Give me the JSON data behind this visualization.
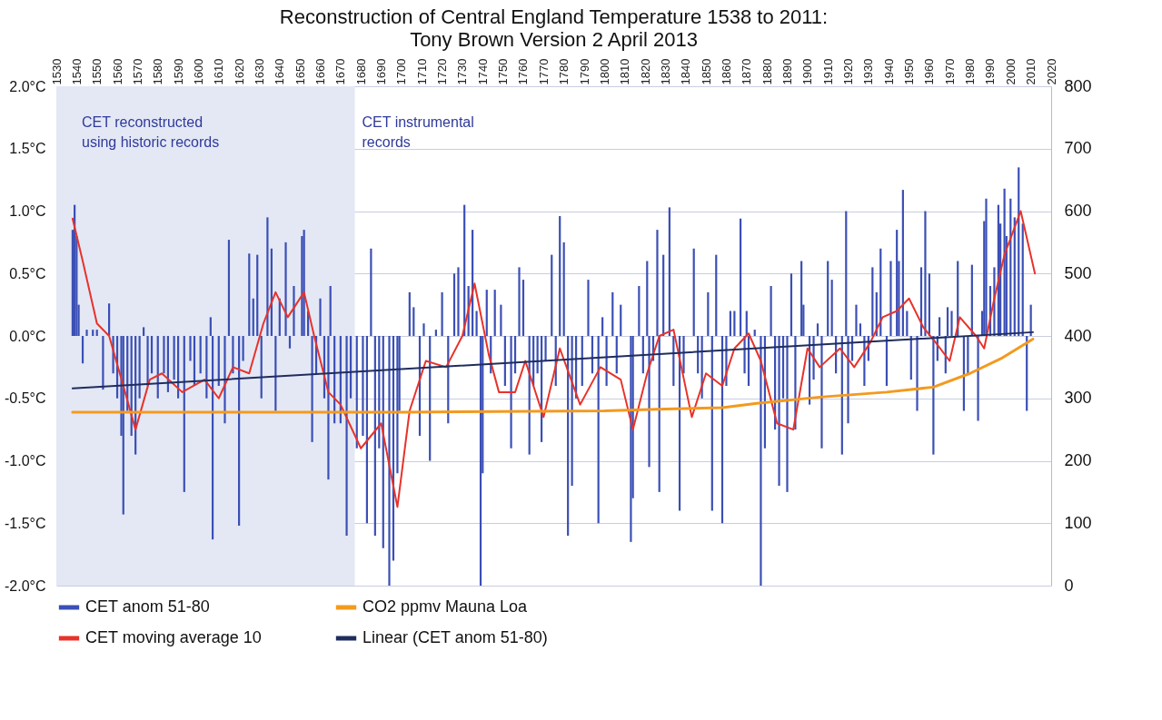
{
  "chart_data": {
    "type": "bar",
    "title": "Reconstruction of Central England Temperature 1538 to 2011:",
    "subtitle": "Tony Brown     Version 2 April 2013",
    "xlim": [
      1530,
      2020
    ],
    "xticks": [
      1530,
      1540,
      1550,
      1560,
      1570,
      1580,
      1590,
      1600,
      1610,
      1620,
      1630,
      1640,
      1650,
      1660,
      1670,
      1680,
      1690,
      1700,
      1710,
      1720,
      1730,
      1740,
      1750,
      1760,
      1770,
      1780,
      1790,
      1800,
      1810,
      1820,
      1830,
      1840,
      1850,
      1860,
      1870,
      1880,
      1890,
      1900,
      1910,
      1920,
      1930,
      1940,
      1950,
      1960,
      1970,
      1980,
      1990,
      2000,
      2010,
      2020
    ],
    "ylim": [
      -2,
      2
    ],
    "yticks": [
      {
        "value": -2,
        "label": "-2.0°C"
      },
      {
        "value": -1.5,
        "label": "-1.5°C"
      },
      {
        "value": -1,
        "label": "-1.0°C"
      },
      {
        "value": -0.5,
        "label": "-0.5°C"
      },
      {
        "value": 0,
        "label": "0.0°C"
      },
      {
        "value": 0.5,
        "label": "0.5°C"
      },
      {
        "value": 1,
        "label": "1.0°C"
      },
      {
        "value": 1.5,
        "label": "1.5°C"
      },
      {
        "value": 2,
        "label": "2.0°C"
      }
    ],
    "y2lim": [
      0,
      800
    ],
    "y2ticks": [
      0,
      100,
      200,
      300,
      400,
      500,
      600,
      700,
      800
    ],
    "grid": "y",
    "legend": "bottom",
    "bands": [
      {
        "axis": "x",
        "from": 1530,
        "to": 1677,
        "label": "CET reconstructed using historic records",
        "color": "#e4e8f5"
      }
    ],
    "annotations": [
      "CET instrumental records"
    ],
    "series": [
      {
        "name": "CET anom 51-80",
        "color": "#3b4fb5",
        "x": [
          1538,
          1539,
          1540,
          1541,
          1543,
          1545,
          1548,
          1550,
          1553,
          1556,
          1558,
          1560,
          1562,
          1563,
          1565,
          1567,
          1569,
          1571,
          1573,
          1575,
          1577,
          1580,
          1583,
          1585,
          1588,
          1590,
          1593,
          1596,
          1598,
          1601,
          1604,
          1606,
          1607,
          1610,
          1613,
          1615,
          1617,
          1620,
          1622,
          1625,
          1627,
          1629,
          1631,
          1634,
          1636,
          1638,
          1640,
          1643,
          1645,
          1647,
          1651,
          1652,
          1654,
          1656,
          1658,
          1660,
          1662,
          1664,
          1665,
          1667,
          1670,
          1673,
          1675,
          1678,
          1681,
          1683,
          1685,
          1687,
          1689,
          1691,
          1694,
          1696,
          1698,
          1699,
          1704,
          1706,
          1709,
          1711,
          1714,
          1717,
          1720,
          1723,
          1726,
          1728,
          1731,
          1733,
          1735,
          1737,
          1739,
          1740,
          1742,
          1744,
          1746,
          1749,
          1751,
          1754,
          1756,
          1758,
          1760,
          1763,
          1765,
          1767,
          1769,
          1771,
          1774,
          1776,
          1778,
          1780,
          1782,
          1784,
          1786,
          1789,
          1792,
          1794,
          1797,
          1799,
          1801,
          1804,
          1806,
          1808,
          1810,
          1813,
          1814,
          1817,
          1819,
          1821,
          1822,
          1824,
          1826,
          1827,
          1829,
          1832,
          1834,
          1837,
          1839,
          1841,
          1844,
          1846,
          1848,
          1851,
          1853,
          1855,
          1858,
          1860,
          1862,
          1864,
          1867,
          1869,
          1870,
          1871,
          1874,
          1877,
          1879,
          1882,
          1884,
          1886,
          1888,
          1890,
          1892,
          1894,
          1897,
          1898,
          1901,
          1903,
          1905,
          1907,
          1910,
          1912,
          1914,
          1917,
          1919,
          1920,
          1922,
          1924,
          1926,
          1928,
          1930,
          1932,
          1934,
          1936,
          1939,
          1941,
          1944,
          1945,
          1947,
          1949,
          1951,
          1954,
          1956,
          1958,
          1960,
          1962,
          1964,
          1965,
          1968,
          1969,
          1971,
          1974,
          1977,
          1979,
          1981,
          1984,
          1986,
          1987,
          1988,
          1990,
          1992,
          1994,
          1995,
          1997,
          1998,
          2000,
          2002,
          2004,
          2006,
          2008,
          2010
        ],
        "values": [
          0.85,
          1.05,
          0.8,
          0.25,
          -0.22,
          0.05,
          0.05,
          0.05,
          -0.43,
          0.26,
          -0.3,
          -0.5,
          -0.8,
          -1.43,
          -0.6,
          -0.8,
          -0.95,
          -0.5,
          0.07,
          -0.4,
          -0.3,
          -0.5,
          -0.3,
          -0.45,
          -0.35,
          -0.5,
          -1.25,
          -0.2,
          -0.4,
          -0.3,
          -0.5,
          0.15,
          -1.63,
          -0.4,
          -0.7,
          0.77,
          -0.3,
          -1.52,
          -0.2,
          0.66,
          0.3,
          0.65,
          -0.5,
          0.95,
          0.7,
          -0.6,
          0.3,
          0.75,
          -0.1,
          0.4,
          0.8,
          0.85,
          0.2,
          -0.85,
          -0.3,
          0.3,
          -0.5,
          -1.15,
          0.4,
          -0.7,
          -0.7,
          -1.6,
          -0.5,
          -0.9,
          -0.8,
          -1.5,
          0.7,
          -1.6,
          -0.9,
          -1.7,
          -2.0,
          -1.8,
          -1.1,
          -0.6,
          0.35,
          0.23,
          -0.8,
          0.1,
          -1.0,
          0.05,
          0.35,
          -0.7,
          0.5,
          0.55,
          1.05,
          0.4,
          0.85,
          0.2,
          -2.0,
          -1.1,
          0.37,
          -0.3,
          0.37,
          0.25,
          -0.4,
          -0.9,
          -0.3,
          0.55,
          0.45,
          -0.95,
          -0.4,
          -0.3,
          -0.85,
          -0.2,
          0.65,
          -0.4,
          0.96,
          0.75,
          -1.6,
          -1.2,
          -0.5,
          -0.4,
          0.45,
          -0.3,
          -1.5,
          0.15,
          -0.4,
          0.35,
          -0.3,
          0.25,
          null,
          -1.65,
          -1.3,
          0.4,
          -0.3,
          0.6,
          -1.05,
          -0.2,
          0.85,
          -1.25,
          0.65,
          1.03,
          -0.4,
          -1.4,
          -0.3,
          null,
          0.7,
          -0.3,
          -0.5,
          0.35,
          -1.4,
          0.65,
          -1.5,
          -0.4,
          0.2,
          0.2,
          0.94,
          -0.3,
          0.2,
          -0.4,
          0.05,
          -2.0,
          -0.9,
          0.4,
          -0.75,
          -1.2,
          -0.5,
          -1.25,
          0.5,
          -0.75,
          0.6,
          0.25,
          -0.55,
          -0.35,
          0.1,
          -0.9,
          0.6,
          0.45,
          -0.3,
          -0.95,
          1.0,
          -0.7,
          -0.2,
          0.25,
          0.1,
          -0.4,
          -0.2,
          0.55,
          0.35,
          0.7,
          -0.4,
          0.6,
          0.85,
          0.6,
          1.17,
          0.2,
          -0.35,
          -0.6,
          0.55,
          1.0,
          0.5,
          -0.95,
          -0.2,
          0.15,
          -0.3,
          0.23,
          0.2,
          0.6,
          -0.6,
          -0.3,
          0.57,
          -0.68,
          0.2,
          0.92,
          1.1,
          0.4,
          0.55,
          1.05,
          0.9,
          1.18,
          0.8,
          1.1,
          0.95,
          1.35,
          0.9,
          -0.6,
          0.25
        ]
      },
      {
        "name": "CO2 ppmv  Mauna Loa",
        "type": "line",
        "axis": "y2",
        "color": "#f39a1e",
        "x": [
          1538,
          1700,
          1800,
          1830,
          1858,
          1875,
          1906,
          1939,
          1962,
          1980,
          1996,
          2011
        ],
        "values": [
          278,
          278,
          280,
          283,
          285,
          292,
          302,
          310,
          318,
          340,
          365,
          395
        ]
      },
      {
        "name": "CET moving average 10",
        "type": "line",
        "color": "#e8322a",
        "x": [
          1538,
          1543,
          1550,
          1556,
          1563,
          1569,
          1576,
          1582,
          1592,
          1603,
          1610,
          1617,
          1625,
          1632,
          1638,
          1644,
          1652,
          1657,
          1664,
          1670,
          1680,
          1690,
          1698,
          1704,
          1712,
          1722,
          1730,
          1736,
          1743,
          1748,
          1756,
          1761,
          1770,
          1778,
          1788,
          1798,
          1808,
          1814,
          1821,
          1827,
          1834,
          1843,
          1850,
          1858,
          1864,
          1871,
          1877,
          1885,
          1893,
          1900,
          1906,
          1916,
          1923,
          1931,
          1937,
          1944,
          1950,
          1957,
          1963,
          1970,
          1975,
          1983,
          1987,
          1992,
          1997,
          2005,
          2012
        ],
        "values": [
          0.94,
          0.6,
          0.1,
          0.0,
          -0.4,
          -0.75,
          -0.35,
          -0.3,
          -0.45,
          -0.35,
          -0.5,
          -0.25,
          -0.3,
          0.1,
          0.35,
          0.15,
          0.35,
          0.0,
          -0.45,
          -0.55,
          -0.9,
          -0.7,
          -1.37,
          -0.6,
          -0.2,
          -0.25,
          0.0,
          0.42,
          -0.15,
          -0.45,
          -0.45,
          -0.2,
          -0.65,
          -0.1,
          -0.55,
          -0.25,
          -0.35,
          -0.75,
          -0.3,
          0.0,
          0.05,
          -0.65,
          -0.3,
          -0.4,
          -0.1,
          0.02,
          -0.2,
          -0.7,
          -0.75,
          -0.1,
          -0.25,
          -0.1,
          -0.25,
          -0.05,
          0.15,
          0.2,
          0.3,
          0.07,
          -0.05,
          -0.2,
          0.15,
          0.0,
          -0.1,
          0.3,
          0.65,
          1.0,
          0.5
        ]
      },
      {
        "name": "Linear (CET anom 51-80)",
        "type": "line",
        "color": "#1f2d5c",
        "x": [
          1538,
          2011
        ],
        "values": [
          -0.42,
          0.03
        ]
      }
    ]
  }
}
